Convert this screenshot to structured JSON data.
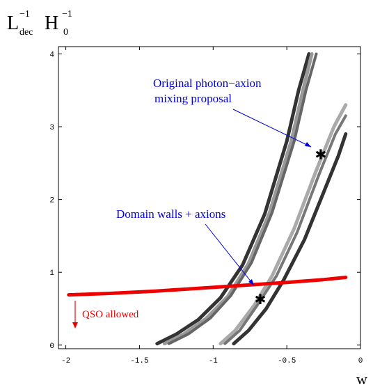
{
  "chart_data": {
    "type": "line",
    "ylabel_main": "L",
    "ylabel_sup1": "−1",
    "ylabel_sub1": "dec",
    "ylabel_H": "H",
    "ylabel_sup2": "−1",
    "ylabel_sub2": "0",
    "xlabel": "w",
    "xlim": [
      -2.05,
      0.0
    ],
    "ylim": [
      -0.05,
      4.1
    ],
    "x_ticks": [
      {
        "value": -2,
        "label": "-2"
      },
      {
        "value": -1.5,
        "label": "-1.5"
      },
      {
        "value": -1,
        "label": "-1"
      },
      {
        "value": -0.5,
        "label": "-0.5"
      },
      {
        "value": 0,
        "label": "0"
      }
    ],
    "y_ticks": [
      {
        "value": 0,
        "label": "0"
      },
      {
        "value": 1,
        "label": "1"
      },
      {
        "value": 2,
        "label": "2"
      },
      {
        "value": 3,
        "label": "3"
      },
      {
        "value": 4,
        "label": "4"
      }
    ],
    "series": [
      {
        "color": "#333333",
        "width": 5,
        "points": [
          [
            -1.38,
            0.02
          ],
          [
            -1.25,
            0.15
          ],
          [
            -1.1,
            0.35
          ],
          [
            -0.95,
            0.65
          ],
          [
            -0.8,
            1.1
          ],
          [
            -0.65,
            1.8
          ],
          [
            -0.5,
            2.8
          ],
          [
            -0.42,
            3.5
          ],
          [
            -0.35,
            4.0
          ]
        ]
      },
      {
        "color": "#999999",
        "width": 5,
        "points": [
          [
            -1.33,
            0.02
          ],
          [
            -1.2,
            0.15
          ],
          [
            -1.05,
            0.36
          ],
          [
            -0.9,
            0.67
          ],
          [
            -0.76,
            1.12
          ],
          [
            -0.62,
            1.8
          ],
          [
            -0.47,
            2.8
          ],
          [
            -0.39,
            3.5
          ],
          [
            -0.33,
            4.0
          ]
        ]
      },
      {
        "color": "#666666",
        "width": 4,
        "points": [
          [
            -1.3,
            0.02
          ],
          [
            -1.17,
            0.15
          ],
          [
            -1.02,
            0.37
          ],
          [
            -0.88,
            0.68
          ],
          [
            -0.74,
            1.13
          ],
          [
            -0.6,
            1.82
          ],
          [
            -0.45,
            2.8
          ],
          [
            -0.37,
            3.5
          ],
          [
            -0.3,
            4.0
          ]
        ]
      },
      {
        "color": "#aaaaaa",
        "width": 5,
        "points": [
          [
            -0.95,
            0.02
          ],
          [
            -0.85,
            0.2
          ],
          [
            -0.72,
            0.55
          ],
          [
            -0.6,
            0.95
          ],
          [
            -0.45,
            1.6
          ],
          [
            -0.3,
            2.4
          ],
          [
            -0.18,
            3.0
          ],
          [
            -0.1,
            3.3
          ]
        ]
      },
      {
        "color": "#777777",
        "width": 4,
        "points": [
          [
            -0.92,
            0.02
          ],
          [
            -0.82,
            0.2
          ],
          [
            -0.7,
            0.55
          ],
          [
            -0.57,
            0.95
          ],
          [
            -0.43,
            1.55
          ],
          [
            -0.28,
            2.35
          ],
          [
            -0.17,
            2.9
          ],
          [
            -0.1,
            3.15
          ]
        ]
      },
      {
        "color": "#333333",
        "width": 5,
        "points": [
          [
            -0.86,
            0.02
          ],
          [
            -0.76,
            0.2
          ],
          [
            -0.64,
            0.5
          ],
          [
            -0.52,
            0.9
          ],
          [
            -0.38,
            1.45
          ],
          [
            -0.25,
            2.1
          ],
          [
            -0.15,
            2.6
          ],
          [
            -0.1,
            2.9
          ]
        ]
      },
      {
        "color": "#ee0000",
        "width": 5,
        "points": [
          [
            -1.98,
            0.69
          ],
          [
            -1.7,
            0.71
          ],
          [
            -1.4,
            0.74
          ],
          [
            -1.1,
            0.78
          ],
          [
            -0.8,
            0.82
          ],
          [
            -0.5,
            0.86
          ],
          [
            -0.25,
            0.9
          ],
          [
            -0.1,
            0.93
          ]
        ]
      }
    ],
    "markers": [
      {
        "x": -0.27,
        "y": 2.62,
        "symbol": "✱"
      },
      {
        "x": -0.68,
        "y": 0.63,
        "symbol": "✱"
      }
    ],
    "annotations": [
      {
        "line1": "Original photon−axion",
        "line2": "mixing proposal",
        "color": "#0000dd"
      },
      {
        "line1": "Domain walls + axions",
        "color": "#0000dd"
      },
      {
        "text": "QSO allowed",
        "color": "#ee0000"
      }
    ]
  }
}
